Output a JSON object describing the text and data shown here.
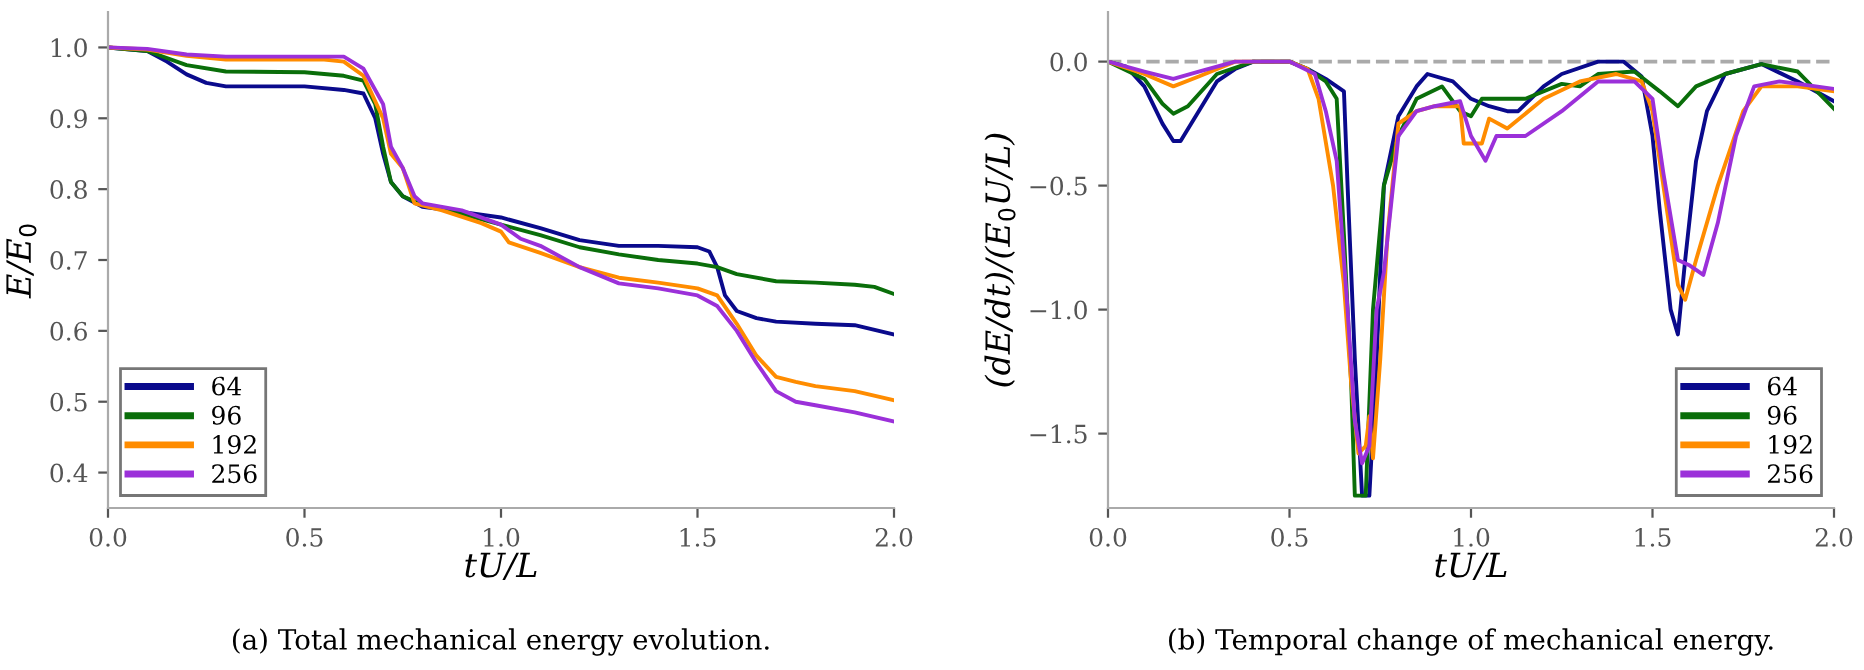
{
  "chart_data": [
    {
      "type": "line",
      "xlabel": "tU/L",
      "ylabel": "E/E$_{0}$",
      "xlim": [
        0,
        2
      ],
      "ylim": [
        0.35,
        1.05
      ],
      "xticks": [
        {
          "value": 0,
          "label": "0.0"
        },
        {
          "value": 0.5,
          "label": "0.5"
        },
        {
          "value": 1,
          "label": "1.0"
        },
        {
          "value": 1.5,
          "label": "1.5"
        },
        {
          "value": 2,
          "label": "2.0"
        }
      ],
      "yticks": [
        0.4,
        0.5,
        0.6,
        0.7,
        0.8,
        0.9,
        {
          "value": 1,
          "label": "1.0"
        }
      ],
      "grid": false,
      "legend": "bottom left",
      "marker": "none",
      "line_style": "solid",
      "annotations": [
        "(a) Total mechanical energy evolution."
      ],
      "series": [
        {
          "name": "64",
          "color": "#0a0a8c",
          "x": [
            0,
            0.1,
            0.15,
            0.2,
            0.25,
            0.3,
            0.5,
            0.6,
            0.65,
            0.68,
            0.7,
            0.72,
            0.75,
            0.8,
            0.9,
            1.0,
            1.1,
            1.2,
            1.3,
            1.4,
            1.5,
            1.53,
            1.55,
            1.57,
            1.6,
            1.65,
            1.7,
            1.8,
            1.9,
            2.0
          ],
          "values": [
            1.0,
            0.995,
            0.98,
            0.962,
            0.95,
            0.945,
            0.945,
            0.94,
            0.935,
            0.9,
            0.85,
            0.81,
            0.79,
            0.775,
            0.768,
            0.76,
            0.745,
            0.728,
            0.72,
            0.72,
            0.718,
            0.712,
            0.69,
            0.65,
            0.628,
            0.618,
            0.613,
            0.61,
            0.608,
            0.595
          ]
        },
        {
          "name": "96",
          "color": "#0a6e0a",
          "x": [
            0,
            0.1,
            0.2,
            0.3,
            0.5,
            0.6,
            0.65,
            0.68,
            0.7,
            0.72,
            0.75,
            0.8,
            0.9,
            1.0,
            1.1,
            1.2,
            1.3,
            1.4,
            1.5,
            1.55,
            1.6,
            1.7,
            1.8,
            1.9,
            1.95,
            2.0
          ],
          "values": [
            1.0,
            0.995,
            0.975,
            0.966,
            0.965,
            0.96,
            0.953,
            0.92,
            0.86,
            0.81,
            0.79,
            0.778,
            0.765,
            0.75,
            0.735,
            0.718,
            0.708,
            0.7,
            0.695,
            0.69,
            0.68,
            0.67,
            0.668,
            0.665,
            0.662,
            0.652
          ]
        },
        {
          "name": "192",
          "color": "#ff8c00",
          "x": [
            0,
            0.1,
            0.2,
            0.3,
            0.55,
            0.6,
            0.65,
            0.7,
            0.72,
            0.75,
            0.78,
            0.85,
            0.95,
            1.0,
            1.02,
            1.1,
            1.2,
            1.3,
            1.4,
            1.5,
            1.55,
            1.6,
            1.65,
            1.7,
            1.75,
            1.8,
            1.9,
            2.0
          ],
          "values": [
            1.0,
            0.997,
            0.988,
            0.983,
            0.983,
            0.98,
            0.96,
            0.9,
            0.85,
            0.83,
            0.78,
            0.77,
            0.752,
            0.74,
            0.725,
            0.71,
            0.69,
            0.675,
            0.668,
            0.66,
            0.65,
            0.61,
            0.565,
            0.535,
            0.528,
            0.522,
            0.515,
            0.502
          ]
        },
        {
          "name": "256",
          "color": "#9b30d9",
          "x": [
            0,
            0.1,
            0.2,
            0.3,
            0.6,
            0.65,
            0.7,
            0.72,
            0.75,
            0.78,
            0.8,
            0.9,
            1.0,
            1.05,
            1.1,
            1.2,
            1.3,
            1.4,
            1.5,
            1.55,
            1.6,
            1.65,
            1.7,
            1.75,
            1.8,
            1.9,
            2.0
          ],
          "values": [
            1.0,
            0.998,
            0.99,
            0.987,
            0.987,
            0.97,
            0.92,
            0.86,
            0.83,
            0.79,
            0.78,
            0.77,
            0.75,
            0.73,
            0.72,
            0.69,
            0.667,
            0.66,
            0.65,
            0.635,
            0.6,
            0.555,
            0.515,
            0.5,
            0.495,
            0.485,
            0.472
          ]
        }
      ]
    },
    {
      "type": "line",
      "xlabel": "tU/L",
      "ylabel": "(dE/dt)/(E$_{0}$U/L)",
      "xlim": [
        0,
        2
      ],
      "ylim": [
        -1.8,
        0.2
      ],
      "xticks": [
        {
          "value": 0,
          "label": "0.0"
        },
        {
          "value": 0.5,
          "label": "0.5"
        },
        {
          "value": 1,
          "label": "1.0"
        },
        {
          "value": 1.5,
          "label": "1.5"
        },
        {
          "value": 2,
          "label": "2.0"
        }
      ],
      "yticks": [
        {
          "value": -1.5,
          "label": "−1.5"
        },
        {
          "value": -1,
          "label": "−1.0"
        },
        {
          "value": -0.5,
          "label": "−0.5"
        },
        {
          "value": 0,
          "label": "0.0"
        }
      ],
      "grid": false,
      "legend": "bottom right",
      "marker": "none",
      "line_style": "solid",
      "ref_lines": [
        {
          "axis": "y",
          "value": 0,
          "color": "#aaaaaa",
          "line_style": "dashed"
        }
      ],
      "annotations": [
        "(b) Temporal change of mechanical energy."
      ],
      "series": [
        {
          "name": "64",
          "color": "#0a0a8c",
          "x": [
            0,
            0.05,
            0.1,
            0.15,
            0.18,
            0.2,
            0.25,
            0.3,
            0.35,
            0.4,
            0.5,
            0.55,
            0.6,
            0.63,
            0.65,
            0.66,
            0.68,
            0.7,
            0.72,
            0.74,
            0.76,
            0.8,
            0.85,
            0.88,
            0.95,
            1.0,
            1.05,
            1.1,
            1.13,
            1.2,
            1.25,
            1.35,
            1.42,
            1.47,
            1.5,
            1.52,
            1.55,
            1.57,
            1.59,
            1.62,
            1.65,
            1.7,
            1.8,
            1.9,
            2.0
          ],
          "values": [
            0,
            -0.02,
            -0.1,
            -0.25,
            -0.32,
            -0.32,
            -0.2,
            -0.08,
            -0.03,
            0,
            0,
            -0.03,
            -0.07,
            -0.1,
            -0.12,
            -0.5,
            -1.2,
            -1.75,
            -1.75,
            -1.2,
            -0.5,
            -0.22,
            -0.1,
            -0.05,
            -0.08,
            -0.15,
            -0.18,
            -0.2,
            -0.2,
            -0.1,
            -0.05,
            0,
            0,
            -0.06,
            -0.3,
            -0.6,
            -1.0,
            -1.1,
            -0.8,
            -0.4,
            -0.2,
            -0.05,
            -0.01,
            -0.08,
            -0.16
          ]
        },
        {
          "name": "96",
          "color": "#0a6e0a",
          "x": [
            0,
            0.1,
            0.15,
            0.18,
            0.22,
            0.3,
            0.4,
            0.5,
            0.55,
            0.6,
            0.63,
            0.65,
            0.67,
            0.68,
            0.71,
            0.73,
            0.76,
            0.8,
            0.85,
            0.92,
            0.97,
            1.0,
            1.03,
            1.15,
            1.25,
            1.3,
            1.35,
            1.45,
            1.52,
            1.57,
            1.62,
            1.7,
            1.8,
            1.9,
            2.0
          ],
          "values": [
            0,
            -0.07,
            -0.17,
            -0.21,
            -0.18,
            -0.05,
            0,
            0,
            -0.03,
            -0.08,
            -0.15,
            -0.7,
            -1.3,
            -1.75,
            -1.75,
            -1.0,
            -0.5,
            -0.3,
            -0.15,
            -0.1,
            -0.2,
            -0.22,
            -0.15,
            -0.15,
            -0.09,
            -0.1,
            -0.05,
            -0.04,
            -0.12,
            -0.18,
            -0.1,
            -0.05,
            -0.01,
            -0.04,
            -0.19
          ]
        },
        {
          "name": "192",
          "color": "#ff8c00",
          "x": [
            0,
            0.1,
            0.18,
            0.25,
            0.35,
            0.5,
            0.55,
            0.58,
            0.62,
            0.65,
            0.67,
            0.69,
            0.71,
            0.72,
            0.73,
            0.75,
            0.77,
            0.8,
            0.85,
            0.9,
            0.97,
            0.98,
            1.03,
            1.05,
            1.1,
            1.2,
            1.3,
            1.4,
            1.47,
            1.5,
            1.53,
            1.57,
            1.59,
            1.62,
            1.68,
            1.75,
            1.8,
            1.9,
            2.0
          ],
          "values": [
            0,
            -0.05,
            -0.1,
            -0.06,
            0,
            0,
            -0.03,
            -0.15,
            -0.5,
            -0.9,
            -1.3,
            -1.58,
            -1.55,
            -1.43,
            -1.6,
            -1.2,
            -0.7,
            -0.25,
            -0.2,
            -0.18,
            -0.18,
            -0.33,
            -0.33,
            -0.23,
            -0.27,
            -0.15,
            -0.08,
            -0.05,
            -0.08,
            -0.2,
            -0.5,
            -0.9,
            -0.96,
            -0.8,
            -0.5,
            -0.2,
            -0.1,
            -0.1,
            -0.12
          ]
        },
        {
          "name": "256",
          "color": "#9b30d9",
          "x": [
            0,
            0.1,
            0.18,
            0.25,
            0.35,
            0.5,
            0.57,
            0.6,
            0.63,
            0.66,
            0.68,
            0.7,
            0.72,
            0.74,
            0.76,
            0.8,
            0.85,
            0.9,
            0.97,
            1.0,
            1.04,
            1.07,
            1.15,
            1.25,
            1.35,
            1.45,
            1.5,
            1.53,
            1.57,
            1.6,
            1.64,
            1.68,
            1.73,
            1.78,
            1.85,
            1.95,
            2.0
          ],
          "values": [
            0,
            -0.04,
            -0.07,
            -0.04,
            0,
            0,
            -0.05,
            -0.2,
            -0.4,
            -1.0,
            -1.45,
            -1.62,
            -1.55,
            -1.0,
            -0.85,
            -0.3,
            -0.2,
            -0.18,
            -0.16,
            -0.3,
            -0.4,
            -0.3,
            -0.3,
            -0.2,
            -0.08,
            -0.08,
            -0.15,
            -0.45,
            -0.8,
            -0.82,
            -0.86,
            -0.65,
            -0.3,
            -0.1,
            -0.08,
            -0.1,
            -0.11
          ]
        }
      ]
    }
  ]
}
